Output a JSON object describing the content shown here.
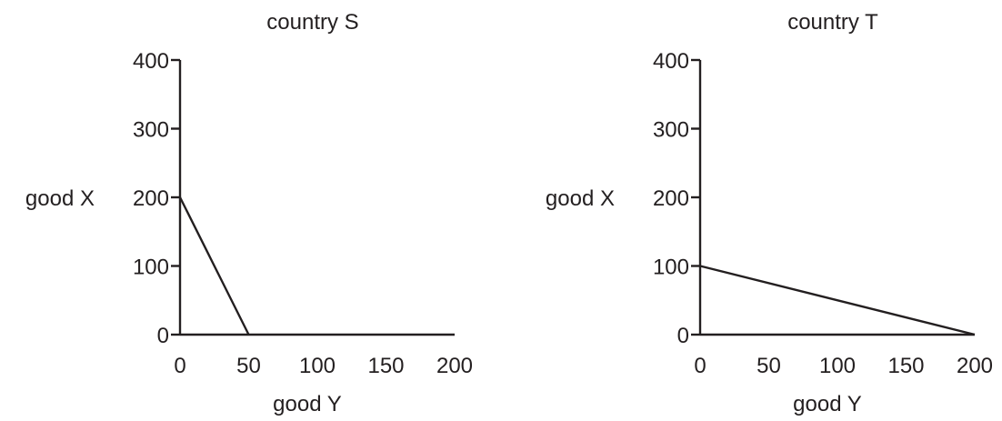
{
  "chart_data": [
    {
      "type": "line",
      "title": "country S",
      "xlabel": "good Y",
      "ylabel": "good X",
      "xlim": [
        0,
        200
      ],
      "ylim": [
        0,
        400
      ],
      "xticks": [
        "0",
        "50",
        "100",
        "150",
        "200"
      ],
      "yticks": [
        "0",
        "100",
        "200",
        "300",
        "400"
      ],
      "series": [
        {
          "x": [
            0,
            50
          ],
          "y": [
            200,
            0
          ]
        }
      ]
    },
    {
      "type": "line",
      "title": "country T",
      "xlabel": "good Y",
      "ylabel": "good X",
      "xlim": [
        0,
        200
      ],
      "ylim": [
        0,
        400
      ],
      "xticks": [
        "0",
        "50",
        "100",
        "150",
        "200"
      ],
      "yticks": [
        "0",
        "100",
        "200",
        "300",
        "400"
      ],
      "series": [
        {
          "x": [
            0,
            200
          ],
          "y": [
            100,
            0
          ]
        }
      ]
    }
  ]
}
